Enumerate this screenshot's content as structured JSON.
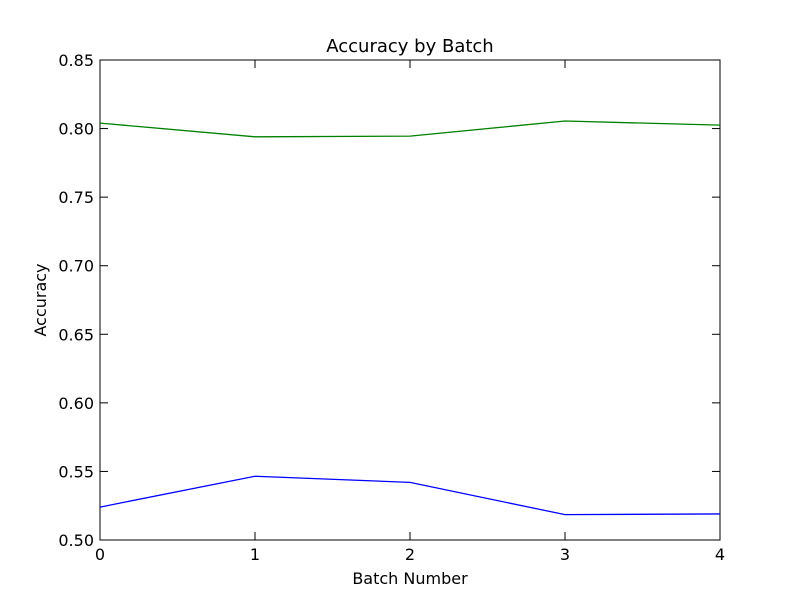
{
  "chart_data": {
    "type": "line",
    "title": "Accuracy by Batch",
    "xlabel": "Batch Number",
    "ylabel": "Accuracy",
    "x": [
      0,
      1,
      2,
      3,
      4
    ],
    "xlim": [
      0,
      4
    ],
    "ylim": [
      0.5,
      0.85
    ],
    "x_ticks": [
      "0",
      "1",
      "2",
      "3",
      "4"
    ],
    "y_ticks": [
      "0.50",
      "0.55",
      "0.60",
      "0.65",
      "0.70",
      "0.75",
      "0.80",
      "0.85"
    ],
    "grid": false,
    "series": [
      {
        "color": "#008000",
        "values": [
          0.804,
          0.794,
          0.7945,
          0.8055,
          0.8025
        ]
      },
      {
        "color": "#0000ff",
        "values": [
          0.524,
          0.5465,
          0.542,
          0.5185,
          0.519
        ]
      }
    ]
  }
}
